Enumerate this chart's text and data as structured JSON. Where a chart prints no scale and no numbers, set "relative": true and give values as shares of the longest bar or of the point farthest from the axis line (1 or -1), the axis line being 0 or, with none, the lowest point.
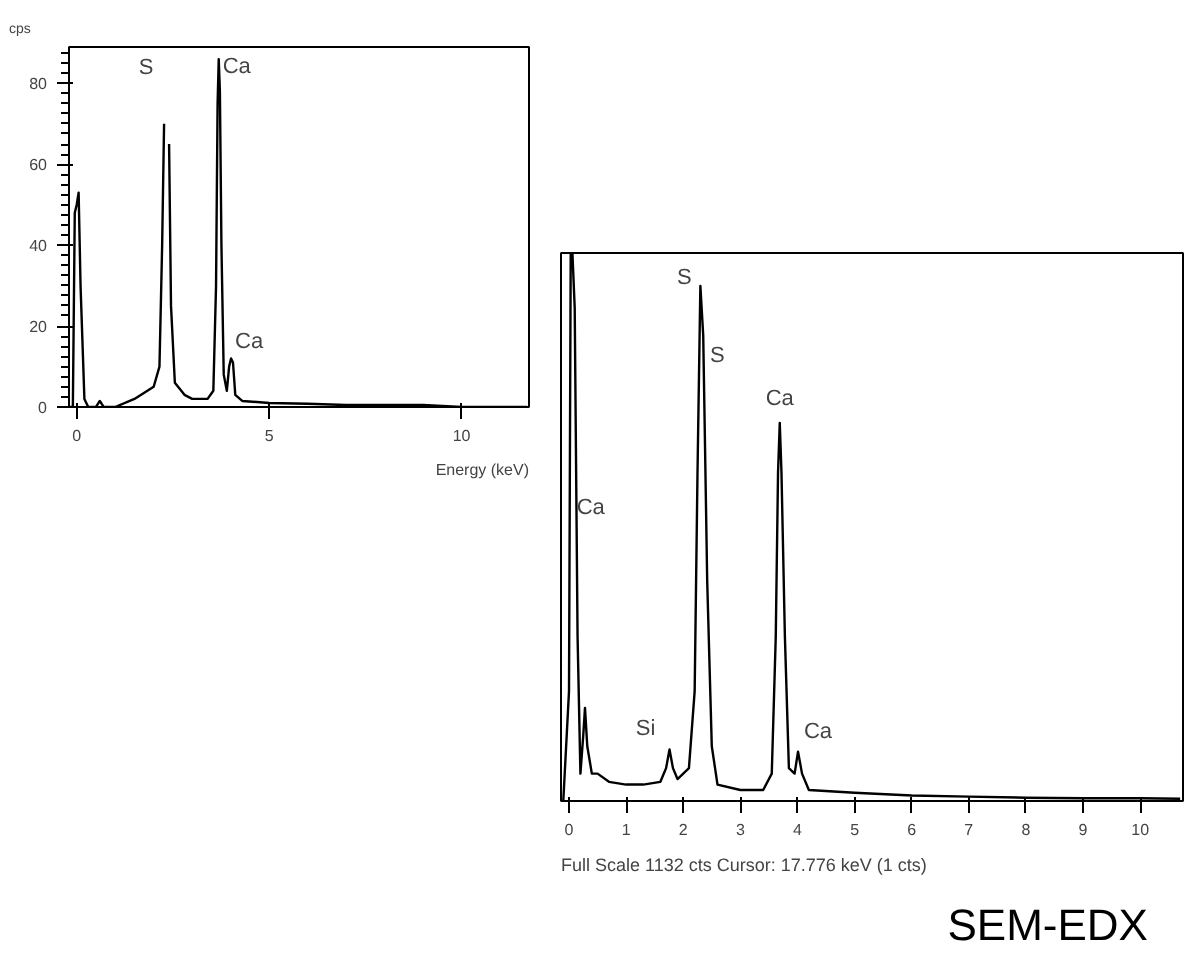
{
  "chart_data": [
    {
      "type": "line",
      "ylabel": "cps",
      "xlabel": "Energy (keV)",
      "xlim": [
        -0.2,
        11.75
      ],
      "ylim": [
        0,
        89
      ],
      "xticks": [
        0,
        5,
        10
      ],
      "yticks": [
        0,
        20,
        40,
        60,
        80
      ],
      "grid": false,
      "series": [
        {
          "color": "#000000",
          "x": [
            -0.2,
            -0.1,
            -0.05,
            0,
            0.05,
            0.1,
            0.2,
            0.3,
            0.5,
            0.6,
            0.7,
            1.0,
            1.5,
            2.0,
            2.15,
            2.22,
            2.27,
            2.31,
            2.35,
            2.4,
            2.45,
            2.55,
            2.8,
            3.0,
            3.4,
            3.55,
            3.62,
            3.66,
            3.69,
            3.72,
            3.76,
            3.82,
            3.9,
            3.96,
            4.01,
            4.06,
            4.12,
            4.3,
            5,
            6,
            7,
            8,
            9,
            10,
            11.7
          ],
          "values": [
            0,
            0,
            48,
            50,
            53,
            30,
            2,
            0,
            0,
            1.5,
            0,
            0,
            2,
            5,
            10,
            40,
            70,
            null,
            null,
            65,
            25,
            6,
            3,
            2,
            2,
            4,
            30,
            75,
            86,
            78,
            40,
            8,
            4,
            10,
            12,
            11,
            3,
            1.5,
            1,
            0.8,
            0.5,
            0.5,
            0.5,
            0,
            0
          ]
        }
      ],
      "annotations": [
        {
          "text": "S",
          "x": 2.27,
          "y": 70
        },
        {
          "text": "Ca",
          "x": 3.69,
          "y": 86
        },
        {
          "text": "Ca",
          "x": 4.01,
          "y": 12
        }
      ]
    },
    {
      "type": "line",
      "relative": true,
      "xlim": [
        -0.14,
        10.75
      ],
      "xticks": [
        0,
        1,
        2,
        3,
        4,
        5,
        6,
        7,
        8,
        9,
        10
      ],
      "grid": false,
      "series": [
        {
          "color": "#000000",
          "x": [
            -0.1,
            0,
            0.03,
            0.06,
            0.1,
            0.15,
            0.2,
            0.25,
            0.28,
            0.32,
            0.4,
            0.5,
            0.7,
            1.0,
            1.3,
            1.6,
            1.7,
            1.76,
            1.82,
            1.9,
            2.0,
            2.1,
            2.2,
            2.25,
            2.3,
            2.35,
            2.42,
            2.5,
            2.6,
            3.0,
            3.4,
            3.55,
            3.62,
            3.66,
            3.69,
            3.72,
            3.78,
            3.85,
            3.95,
            4.01,
            4.08,
            4.2,
            5,
            6,
            7,
            8,
            9,
            10,
            10.7
          ],
          "values": [
            0,
            0.2,
            1,
            1,
            0.9,
            0.3,
            0.05,
            0.12,
            0.17,
            0.1,
            0.05,
            0.05,
            0.035,
            0.03,
            0.03,
            0.035,
            0.06,
            0.094,
            0.06,
            0.04,
            0.05,
            0.06,
            0.2,
            0.6,
            0.94,
            0.85,
            0.4,
            0.1,
            0.03,
            0.02,
            0.02,
            0.05,
            0.3,
            0.6,
            0.69,
            0.6,
            0.3,
            0.06,
            0.05,
            0.09,
            0.05,
            0.02,
            0.015,
            0.01,
            0.008,
            0.006,
            0.005,
            0.005,
            0.004
          ]
        }
      ],
      "annotations": [
        {
          "text": "Ca",
          "x": 0.1,
          "y": 0.55
        },
        {
          "text": "S",
          "x": 2.3,
          "y": 0.94
        },
        {
          "text": "S",
          "x": 2.35,
          "y": 0.82
        },
        {
          "text": "Ca",
          "x": 3.69,
          "y": 0.69
        },
        {
          "text": "Si",
          "x": 1.76,
          "y": 0.094
        },
        {
          "text": "Ca",
          "x": 4.01,
          "y": 0.09
        },
        "Full Scale 1132 cts  Cursor: 17.776 keV (1 cts)",
        "SEM-EDX"
      ]
    }
  ]
}
